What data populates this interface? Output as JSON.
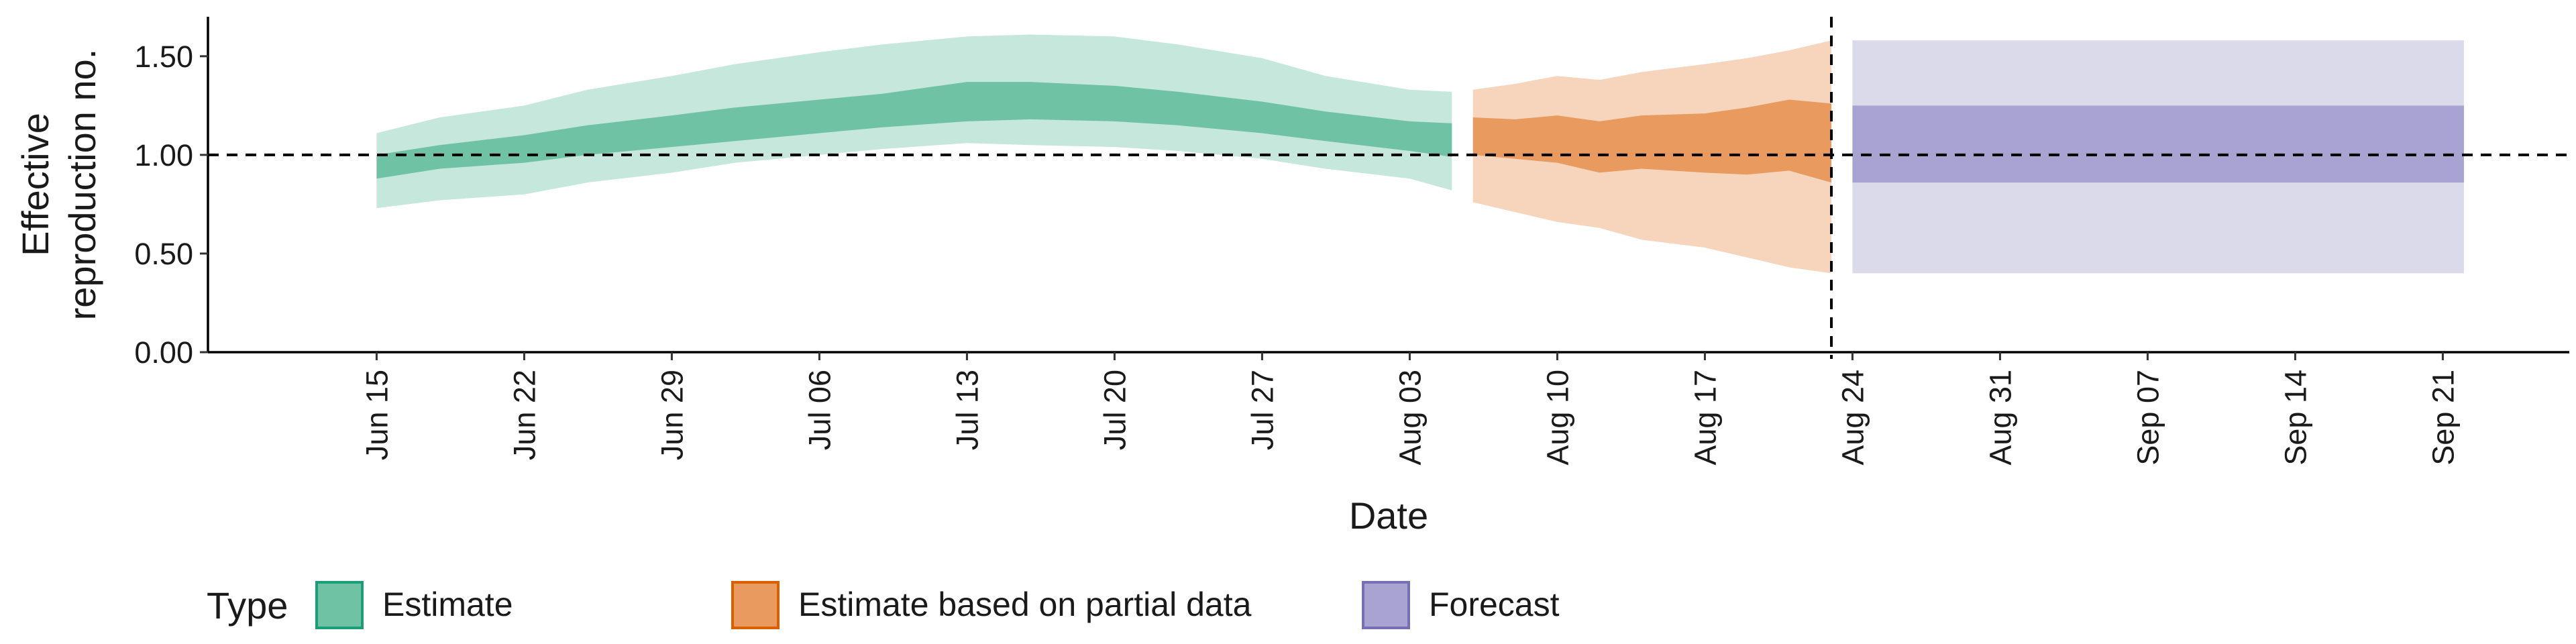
{
  "chart_data": {
    "type": "area",
    "xlabel": "Date",
    "ylabel_lines": [
      "Effective",
      "reproduction no."
    ],
    "ylim": [
      0,
      1.7
    ],
    "y_ticks": [
      0.0,
      0.5,
      1.0,
      1.5
    ],
    "y_tick_labels": [
      "0.00",
      "0.50",
      "1.00",
      "1.50"
    ],
    "xlim": [
      "2020-06-07",
      "2020-09-27"
    ],
    "x_tick_dates": [
      "2020-06-15",
      "2020-06-22",
      "2020-06-29",
      "2020-07-06",
      "2020-07-13",
      "2020-07-20",
      "2020-07-27",
      "2020-08-03",
      "2020-08-10",
      "2020-08-17",
      "2020-08-24",
      "2020-08-31",
      "2020-09-07",
      "2020-09-14",
      "2020-09-21"
    ],
    "x_tick_labels": [
      "Jun 15",
      "Jun 22",
      "Jun 29",
      "Jul 06",
      "Jul 13",
      "Jul 20",
      "Jul 27",
      "Aug 03",
      "Aug 10",
      "Aug 17",
      "Aug 24",
      "Aug 31",
      "Sep 07",
      "Sep 14",
      "Sep 21"
    ],
    "reference_hline": 1.0,
    "reference_vline_date": "2020-08-23",
    "legend": {
      "title": "Type",
      "placement": "bottom-left",
      "items": [
        {
          "label": "Estimate",
          "fill": "#70c2a5",
          "border": "#1b9e77"
        },
        {
          "label": "Estimate based on partial data",
          "fill": "#e99a5e",
          "border": "#d95f02"
        },
        {
          "label": "Forecast",
          "fill": "#a8a3d0",
          "border": "#7570b3"
        }
      ]
    },
    "series": [
      {
        "name": "Estimate",
        "outer_color": "#c5e7dc",
        "inner_color": "#70c2a5",
        "x": [
          "2020-06-15",
          "2020-06-18",
          "2020-06-22",
          "2020-06-25",
          "2020-06-29",
          "2020-07-02",
          "2020-07-06",
          "2020-07-09",
          "2020-07-13",
          "2020-07-16",
          "2020-07-20",
          "2020-07-23",
          "2020-07-27",
          "2020-07-30",
          "2020-08-03",
          "2020-08-05"
        ],
        "outer_lower": [
          0.73,
          0.77,
          0.8,
          0.86,
          0.91,
          0.96,
          1.0,
          1.03,
          1.06,
          1.05,
          1.04,
          1.02,
          0.98,
          0.93,
          0.88,
          0.82
        ],
        "inner_lower": [
          0.88,
          0.93,
          0.96,
          1.0,
          1.04,
          1.07,
          1.11,
          1.14,
          1.17,
          1.18,
          1.17,
          1.15,
          1.11,
          1.07,
          1.02,
          0.99
        ],
        "inner_upper": [
          1.0,
          1.05,
          1.1,
          1.15,
          1.2,
          1.24,
          1.28,
          1.31,
          1.37,
          1.37,
          1.35,
          1.32,
          1.27,
          1.22,
          1.17,
          1.16
        ],
        "outer_upper": [
          1.11,
          1.19,
          1.25,
          1.33,
          1.4,
          1.46,
          1.52,
          1.56,
          1.6,
          1.61,
          1.6,
          1.56,
          1.49,
          1.4,
          1.33,
          1.32
        ]
      },
      {
        "name": "Estimate based on partial data",
        "outer_color": "#f6d5bc",
        "inner_color": "#e99a5e",
        "x": [
          "2020-08-06",
          "2020-08-08",
          "2020-08-10",
          "2020-08-12",
          "2020-08-14",
          "2020-08-17",
          "2020-08-19",
          "2020-08-21",
          "2020-08-23"
        ],
        "outer_lower": [
          0.76,
          0.71,
          0.66,
          0.63,
          0.57,
          0.53,
          0.48,
          0.43,
          0.4
        ],
        "inner_lower": [
          1.0,
          0.98,
          0.96,
          0.91,
          0.93,
          0.91,
          0.9,
          0.92,
          0.86
        ],
        "inner_upper": [
          1.19,
          1.18,
          1.2,
          1.17,
          1.2,
          1.21,
          1.24,
          1.28,
          1.26
        ],
        "outer_upper": [
          1.33,
          1.36,
          1.4,
          1.38,
          1.42,
          1.46,
          1.49,
          1.53,
          1.58
        ]
      },
      {
        "name": "Forecast",
        "outer_color": "#dadaeb",
        "inner_color": "#a8a3d0",
        "x": [
          "2020-08-24",
          "2020-09-22"
        ],
        "outer_lower": [
          0.4,
          0.4
        ],
        "inner_lower": [
          0.86,
          0.86
        ],
        "inner_upper": [
          1.25,
          1.25
        ],
        "outer_upper": [
          1.58,
          1.58
        ]
      }
    ]
  }
}
